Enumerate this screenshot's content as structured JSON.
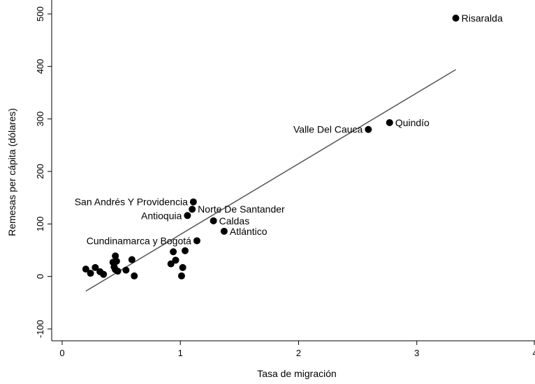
{
  "chart_data": {
    "type": "scatter",
    "title": "",
    "xlabel": "Tasa de migración",
    "ylabel": "Remesas per cápita (dólares)",
    "xlim": [
      0,
      4
    ],
    "ylim": [
      -100,
      500
    ],
    "xticks": [
      0,
      1,
      2,
      3,
      4
    ],
    "yticks": [
      -100,
      0,
      100,
      200,
      300,
      400,
      500
    ],
    "grid": false,
    "points": [
      {
        "x": 3.33,
        "y": 492,
        "label": "Risaralda",
        "anchor": "start"
      },
      {
        "x": 2.77,
        "y": 293,
        "label": "Quindío",
        "anchor": "start"
      },
      {
        "x": 2.59,
        "y": 280,
        "label": "Valle Del Cauca",
        "anchor": "end"
      },
      {
        "x": 1.11,
        "y": 142,
        "label": "San Andrés Y Providencia",
        "anchor": "end"
      },
      {
        "x": 1.1,
        "y": 128,
        "label": "Norte De Santander",
        "anchor": "start"
      },
      {
        "x": 1.06,
        "y": 116,
        "label": "Antioquia",
        "anchor": "end"
      },
      {
        "x": 1.28,
        "y": 106,
        "label": "Caldas",
        "anchor": "start"
      },
      {
        "x": 1.37,
        "y": 86,
        "label": "Atlántico",
        "anchor": "start"
      },
      {
        "x": 1.14,
        "y": 68,
        "label": "Cundinamarca y Bogotá",
        "anchor": "end"
      },
      {
        "x": 0.2,
        "y": 14,
        "label": ""
      },
      {
        "x": 0.24,
        "y": 6,
        "label": ""
      },
      {
        "x": 0.28,
        "y": 17,
        "label": ""
      },
      {
        "x": 0.32,
        "y": 9,
        "label": ""
      },
      {
        "x": 0.35,
        "y": 4,
        "label": ""
      },
      {
        "x": 0.43,
        "y": 27,
        "label": ""
      },
      {
        "x": 0.44,
        "y": 18,
        "label": ""
      },
      {
        "x": 0.45,
        "y": 13,
        "label": ""
      },
      {
        "x": 0.45,
        "y": 39,
        "label": ""
      },
      {
        "x": 0.46,
        "y": 29,
        "label": ""
      },
      {
        "x": 0.47,
        "y": 10,
        "label": ""
      },
      {
        "x": 0.54,
        "y": 12,
        "label": ""
      },
      {
        "x": 0.59,
        "y": 32,
        "label": ""
      },
      {
        "x": 0.61,
        "y": 1,
        "label": ""
      },
      {
        "x": 0.92,
        "y": 24,
        "label": ""
      },
      {
        "x": 0.94,
        "y": 47,
        "label": ""
      },
      {
        "x": 0.96,
        "y": 31,
        "label": ""
      },
      {
        "x": 1.01,
        "y": 1,
        "label": ""
      },
      {
        "x": 1.02,
        "y": 17,
        "label": ""
      },
      {
        "x": 1.04,
        "y": 49,
        "label": ""
      }
    ],
    "fit_line": {
      "x": [
        0.2,
        3.33
      ],
      "y": [
        -28,
        394
      ]
    },
    "colors": {
      "points": "#000000",
      "fit_line": "#555555",
      "axes": "#000000"
    }
  }
}
